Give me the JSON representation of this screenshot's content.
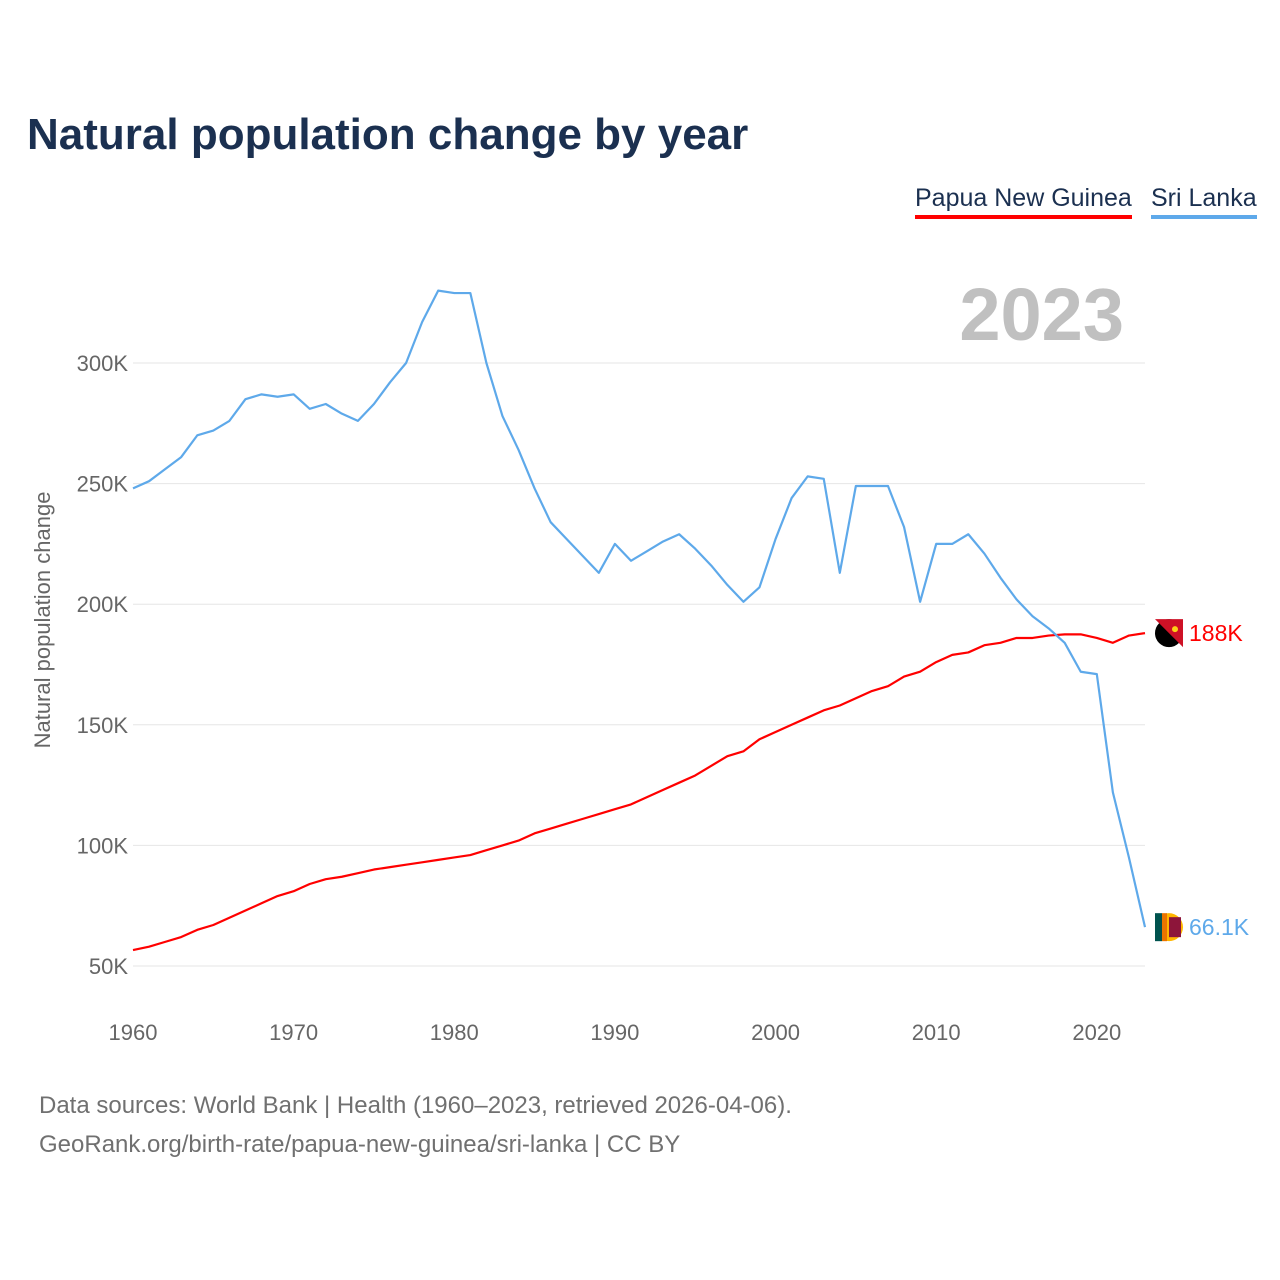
{
  "title": "Natural population change by year",
  "year_label": "2023",
  "legend": [
    {
      "label": "Papua New Guinea",
      "color": "#ff0000"
    },
    {
      "label": "Sri Lanka",
      "color": "#5ea9ea"
    }
  ],
  "footer": {
    "line1": "Data sources: World Bank | Health (1960–2023, retrieved 2026-04-06).",
    "line2": "GeoRank.org/birth-rate/papua-new-guinea/sri-lanka | CC BY"
  },
  "chart_data": {
    "type": "line",
    "title": "Natural population change by year",
    "xlabel": "",
    "ylabel": "Natural population change",
    "xlim": [
      1960,
      2023
    ],
    "ylim": [
      50000,
      330000
    ],
    "x_ticks": [
      1960,
      1970,
      1980,
      1990,
      2000,
      2010,
      2020
    ],
    "x_tick_labels": [
      "1960",
      "1970",
      "1980",
      "1990",
      "2000",
      "2010",
      "2020"
    ],
    "y_ticks": [
      50000,
      100000,
      150000,
      200000,
      250000,
      300000
    ],
    "y_tick_labels": [
      "50K",
      "100K",
      "150K",
      "200K",
      "250K",
      "300K"
    ],
    "grid": true,
    "legend_position": "top-right",
    "x_start": 1960,
    "series": [
      {
        "name": "Papua New Guinea",
        "color": "#ff0000",
        "end_label": "188K",
        "values_k": [
          56.6,
          58,
          60,
          62,
          65,
          67,
          70,
          73,
          76,
          79,
          81,
          84,
          86,
          87,
          88.5,
          90,
          91,
          92,
          93,
          94,
          95,
          96,
          98,
          100,
          102,
          105,
          107,
          109,
          111,
          113,
          115,
          117,
          120,
          123,
          126,
          129,
          133,
          137,
          139,
          144,
          147,
          150,
          153,
          156,
          158,
          161,
          164,
          166,
          170,
          172,
          176,
          179,
          180,
          183,
          184,
          186,
          186,
          187,
          187.5,
          187.5,
          186,
          184,
          187,
          188
        ]
      },
      {
        "name": "Sri Lanka",
        "color": "#5ea9ea",
        "end_label": "66.1K",
        "values_k": [
          248,
          251,
          256,
          261,
          270,
          272,
          276,
          285,
          287,
          286,
          287,
          281,
          283,
          279,
          276,
          283,
          292,
          300,
          317,
          330,
          329,
          329,
          300,
          278,
          264,
          248,
          234,
          227,
          220,
          213,
          225,
          218,
          222,
          226,
          229,
          223,
          216,
          208,
          201,
          207,
          227,
          244,
          253,
          252,
          213,
          249,
          249,
          249,
          232,
          201,
          225,
          225,
          229,
          221,
          211,
          202,
          195,
          190,
          184,
          172,
          171,
          122,
          95,
          66.1
        ]
      }
    ]
  }
}
